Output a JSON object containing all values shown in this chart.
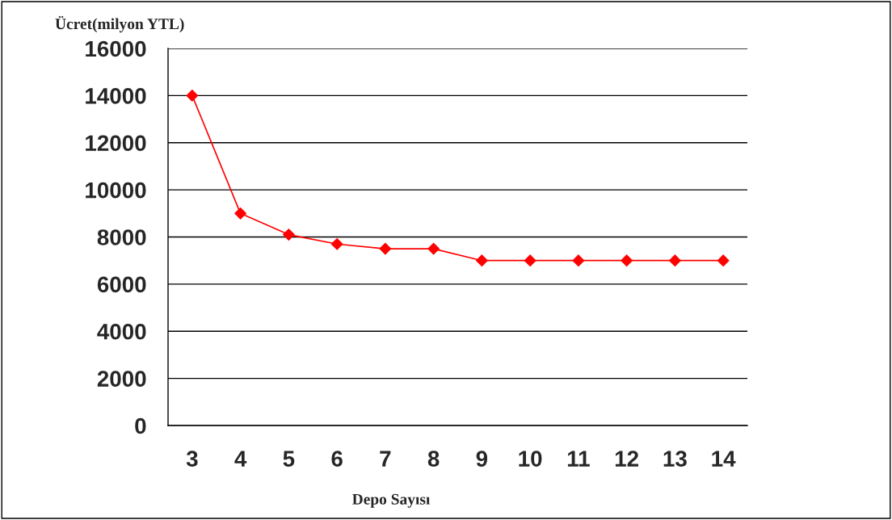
{
  "chart_data": {
    "type": "line",
    "ylabel": "Ücret(milyon YTL)",
    "xlabel": "Depo Sayısı",
    "categories": [
      "3",
      "4",
      "5",
      "6",
      "7",
      "8",
      "9",
      "10",
      "11",
      "12",
      "13",
      "14"
    ],
    "series": [
      {
        "color": "#ff0000",
        "values": [
          14000,
          9000,
          8100,
          7700,
          7500,
          7500,
          7000,
          7000,
          7000,
          7000,
          7000,
          7000
        ]
      }
    ],
    "ylim": [
      0,
      16000
    ],
    "yticks": [
      0,
      2000,
      4000,
      6000,
      8000,
      10000,
      12000,
      14000,
      16000
    ],
    "grid": "y",
    "marker": "diamond",
    "line_style": "solid",
    "legend": false
  }
}
